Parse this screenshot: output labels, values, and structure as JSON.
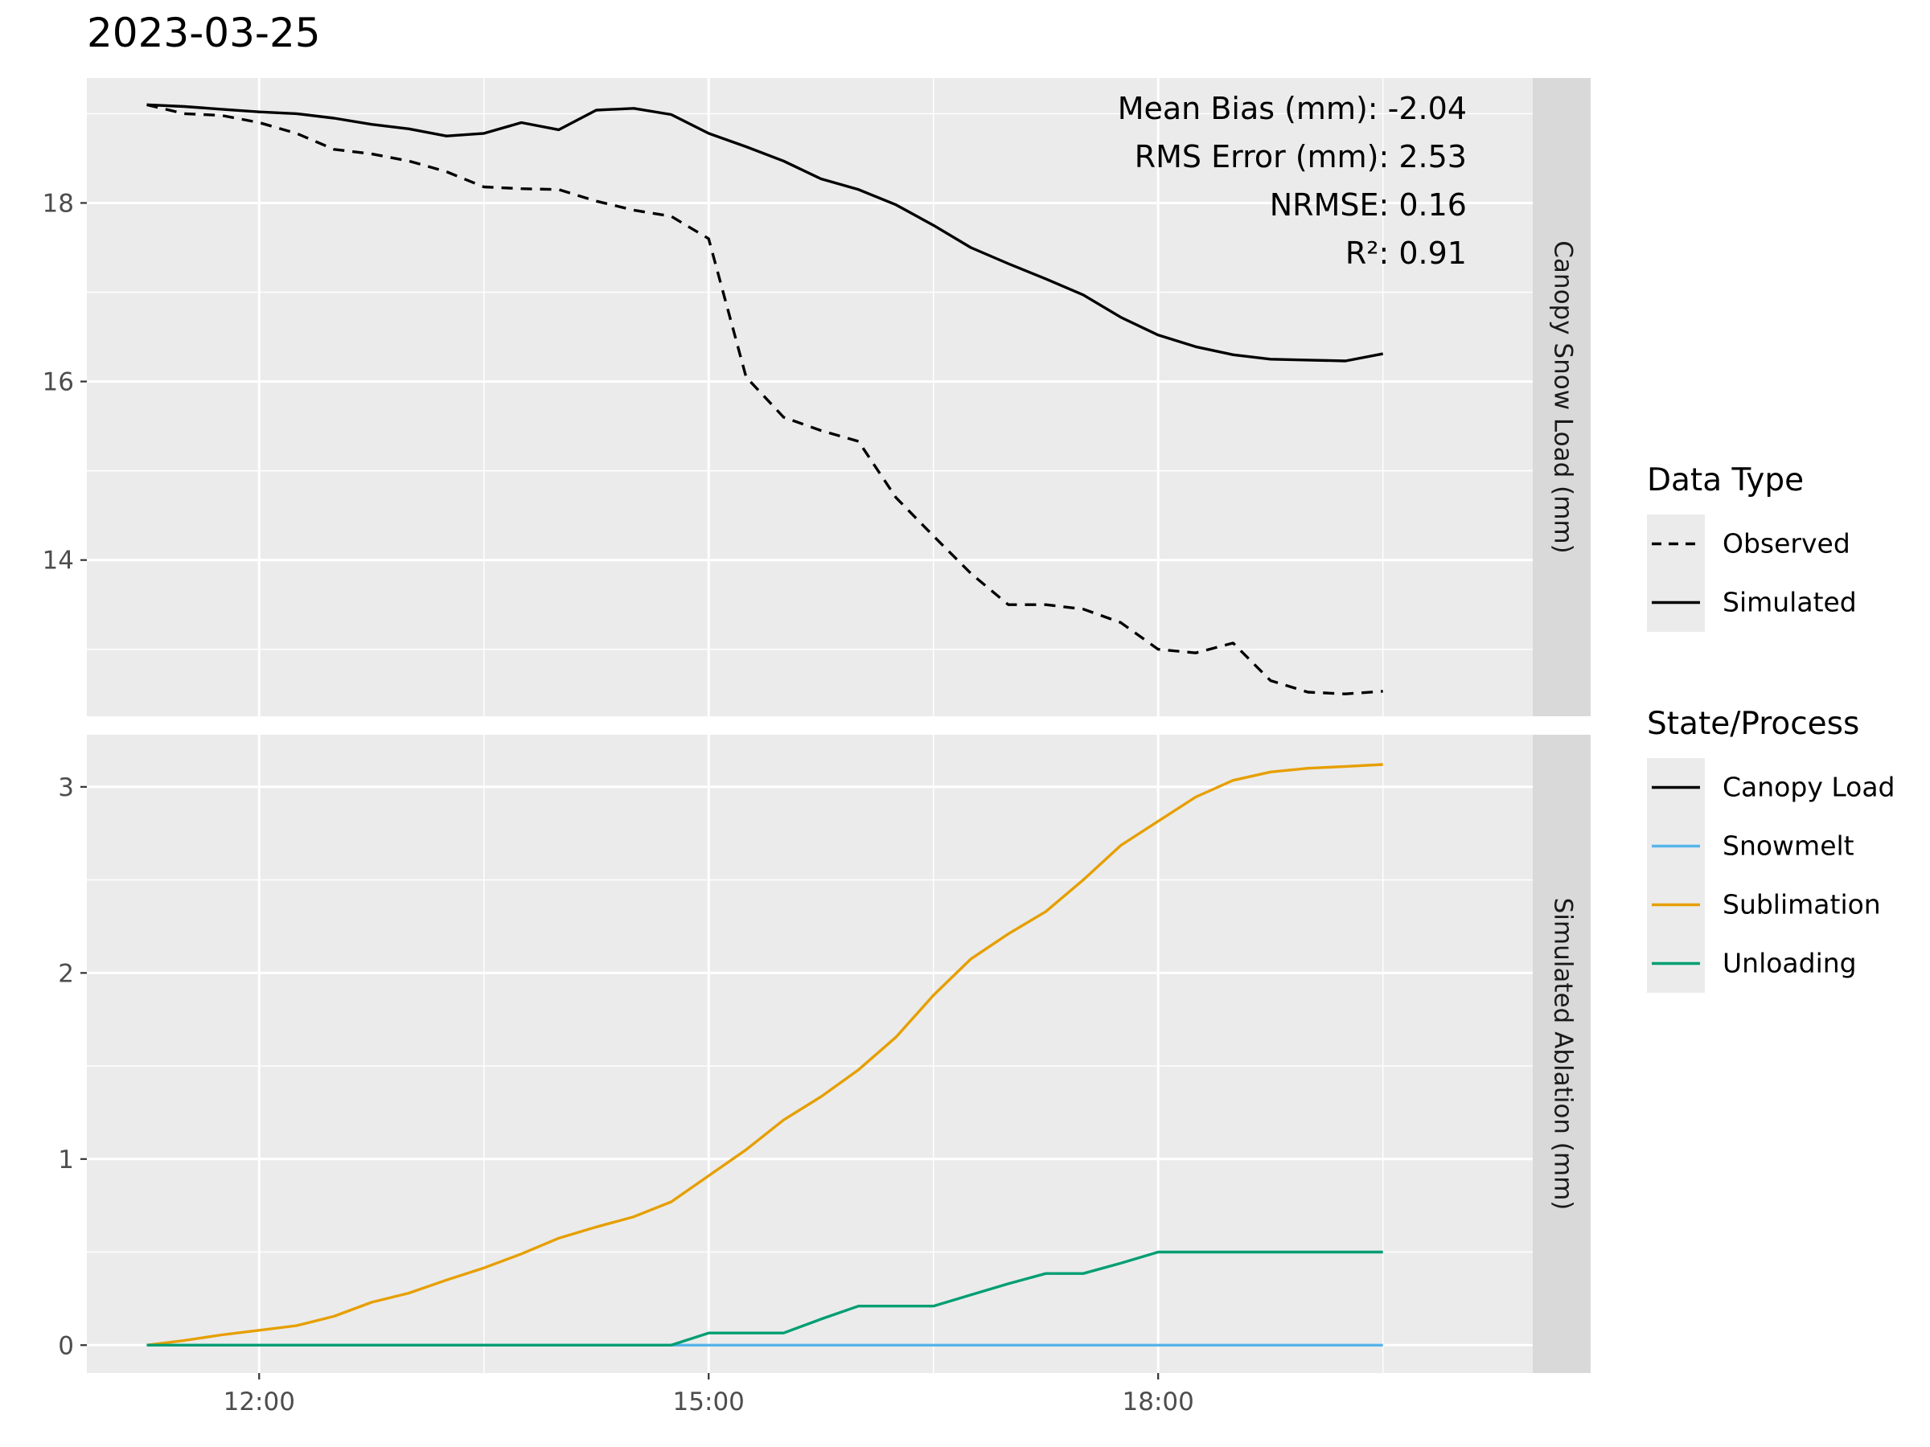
{
  "chart_data": {
    "type": "line",
    "title": "2023-03-25",
    "xlabel": "",
    "x_ticks": [
      "12:00",
      "15:00",
      "18:00"
    ],
    "x_tick_values": [
      12.0,
      15.0,
      18.0
    ],
    "xlim": [
      10.85,
      20.5
    ],
    "grid": true,
    "legend_position": "right",
    "x": [
      11.25,
      11.5,
      11.75,
      12.0,
      12.25,
      12.5,
      12.75,
      13.0,
      13.25,
      13.5,
      13.75,
      14.0,
      14.25,
      14.5,
      14.75,
      15.0,
      15.25,
      15.5,
      15.75,
      16.0,
      16.25,
      16.5,
      16.75,
      17.0,
      17.25,
      17.5,
      17.75,
      18.0,
      18.25,
      18.5,
      18.75,
      19.0,
      19.25,
      19.5
    ],
    "panels": [
      {
        "strip_label": "Canopy Snow Load (mm)",
        "ylim": [
          12.25,
          19.4
        ],
        "y_ticks": [
          14,
          16,
          18
        ],
        "annotations": [
          "Mean Bias (mm): -2.04",
          "RMS Error (mm): 2.53",
          "NRMSE: 0.16",
          "R²: 0.91"
        ],
        "series": [
          {
            "name": "Observed",
            "dash": "dashed",
            "color": "#000000",
            "values": [
              19.1,
              19.0,
              18.98,
              18.9,
              18.78,
              18.6,
              18.55,
              18.47,
              18.35,
              18.18,
              18.16,
              18.15,
              18.02,
              17.92,
              17.85,
              17.6,
              16.05,
              15.6,
              15.45,
              15.33,
              14.7,
              14.27,
              13.85,
              13.5,
              13.5,
              13.45,
              13.3,
              13.0,
              12.96,
              13.07,
              12.65,
              12.52,
              12.5,
              12.53
            ]
          },
          {
            "name": "Simulated",
            "dash": "solid",
            "color": "#000000",
            "values": [
              19.1,
              19.08,
              19.05,
              19.02,
              19.0,
              18.95,
              18.88,
              18.83,
              18.75,
              18.78,
              18.9,
              18.82,
              19.04,
              19.06,
              18.99,
              18.78,
              18.63,
              18.47,
              18.27,
              18.15,
              17.98,
              17.75,
              17.5,
              17.32,
              17.15,
              16.97,
              16.72,
              16.52,
              16.39,
              16.3,
              16.25,
              16.24,
              16.23,
              16.31
            ]
          }
        ]
      },
      {
        "strip_label": "Simulated Ablation (mm)",
        "ylim": [
          -0.15,
          3.28
        ],
        "y_ticks": [
          0,
          1,
          2,
          3
        ],
        "series": [
          {
            "name": "Canopy Load",
            "color": "#000000",
            "values": []
          },
          {
            "name": "Snowmelt",
            "color": "#56B4E9",
            "values": [
              0,
              0,
              0,
              0,
              0,
              0,
              0,
              0,
              0,
              0,
              0,
              0,
              0,
              0,
              0,
              0,
              0,
              0,
              0,
              0,
              0,
              0,
              0,
              0,
              0,
              0,
              0,
              0,
              0,
              0,
              0,
              0,
              0,
              0
            ]
          },
          {
            "name": "Sublimation",
            "color": "#E69F00",
            "values": [
              0,
              0.025,
              0.055,
              0.08,
              0.105,
              0.155,
              0.23,
              0.28,
              0.35,
              0.415,
              0.49,
              0.575,
              0.635,
              0.69,
              0.77,
              0.91,
              1.05,
              1.21,
              1.335,
              1.48,
              1.655,
              1.88,
              2.075,
              2.21,
              2.33,
              2.5,
              2.685,
              2.815,
              2.945,
              3.035,
              3.08,
              3.1,
              3.11,
              3.12
            ]
          },
          {
            "name": "Unloading",
            "color": "#009E73",
            "values": [
              0,
              0,
              0,
              0,
              0,
              0,
              0,
              0,
              0,
              0,
              0,
              0,
              0,
              0,
              0,
              0.065,
              0.065,
              0.065,
              0.14,
              0.21,
              0.21,
              0.21,
              0.27,
              0.33,
              0.385,
              0.385,
              0.44,
              0.5,
              0.5,
              0.5,
              0.5,
              0.5,
              0.5,
              0.5
            ]
          }
        ]
      }
    ],
    "legends": [
      {
        "title": "Data Type",
        "entries": [
          {
            "label": "Observed",
            "color": "#000000",
            "dash": "dashed"
          },
          {
            "label": "Simulated",
            "color": "#000000",
            "dash": "solid"
          }
        ]
      },
      {
        "title": "State/Process",
        "entries": [
          {
            "label": "Canopy Load",
            "color": "#000000",
            "dash": "solid"
          },
          {
            "label": "Snowmelt",
            "color": "#56B4E9",
            "dash": "solid"
          },
          {
            "label": "Sublimation",
            "color": "#E69F00",
            "dash": "solid"
          },
          {
            "label": "Unloading",
            "color": "#009E73",
            "dash": "solid"
          }
        ]
      }
    ]
  }
}
